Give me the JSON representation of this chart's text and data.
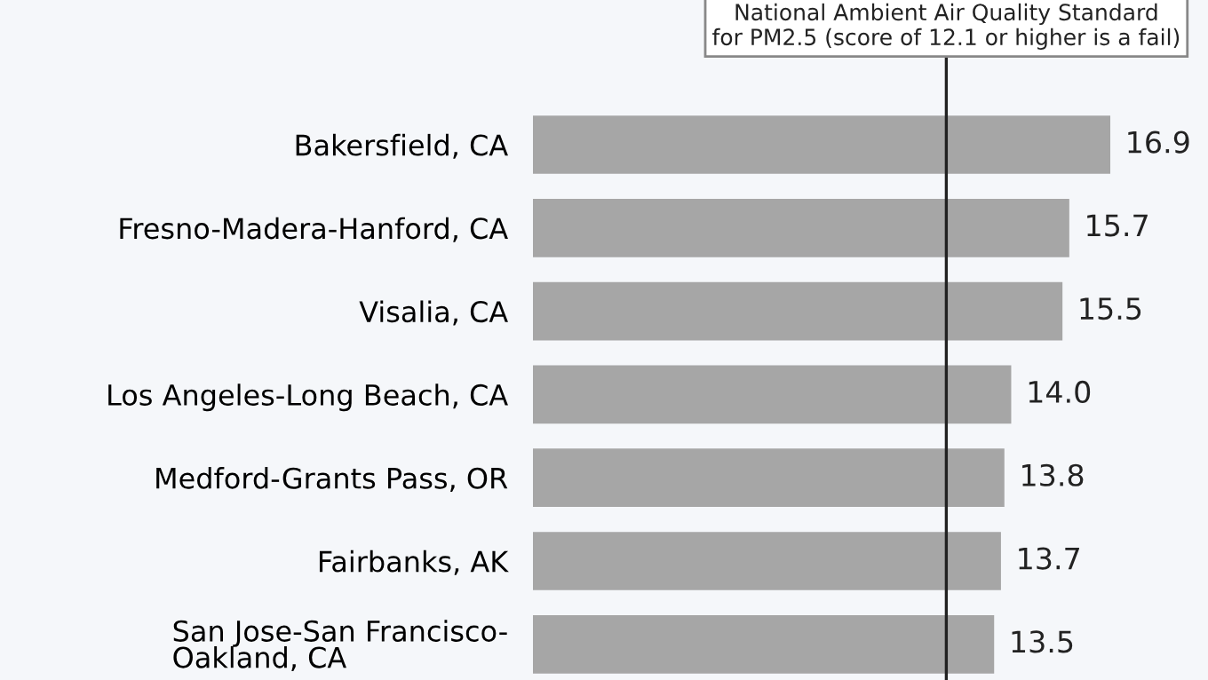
{
  "chart_data": {
    "type": "bar",
    "orientation": "horizontal",
    "categories": [
      "Bakersfield, CA",
      "Fresno-Madera-Hanford, CA",
      "Visalia, CA",
      "Los Angeles-Long Beach, CA",
      "Medford-Grants Pass, OR",
      "Fairbanks, AK",
      "San Jose-San Francisco-\nOakland, CA"
    ],
    "values": [
      16.9,
      15.7,
      15.5,
      14.0,
      13.8,
      13.7,
      13.5
    ],
    "value_labels": [
      "16.9",
      "15.7",
      "15.5",
      "14.0",
      "13.8",
      "13.7",
      "13.5"
    ],
    "color": "#a6a6a6",
    "tick_labels": "y",
    "ref_lines": [
      {
        "axis": "x",
        "value": 12.1,
        "label": "National Ambient Air Quality Standard\nfor PM2.5 (score of 12.1 or higher is a fail)",
        "color": "#222222"
      }
    ]
  }
}
